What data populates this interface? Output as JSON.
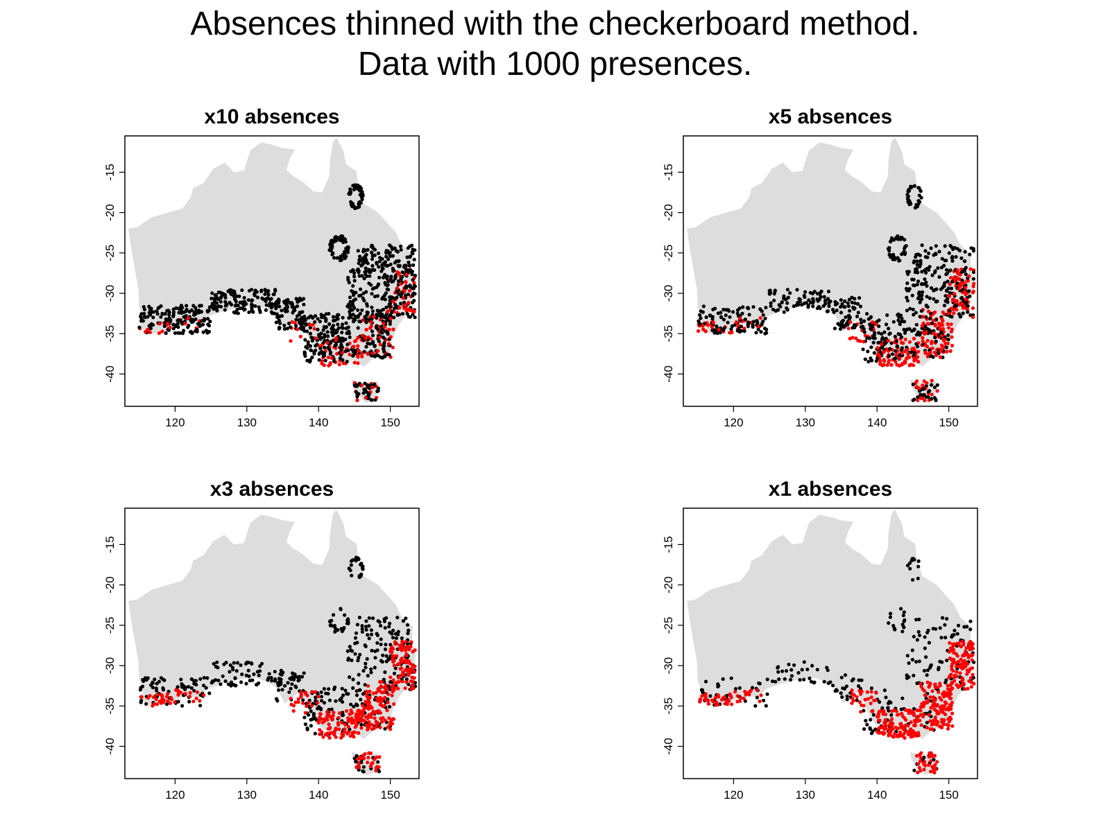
{
  "figure": {
    "title_line1": "Absences thinned with the checkerboard method.",
    "title_line2": "Data with 1000 presences."
  },
  "colors": {
    "land": "#dddddd",
    "absence": "#000000",
    "presence": "#ff0000"
  },
  "chart_data": [
    {
      "type": "scatter",
      "title": "x10 absences",
      "absence_multiplier": 10,
      "xlim": [
        113,
        154
      ],
      "ylim": [
        -44,
        -10.5
      ],
      "xticks": [
        120,
        130,
        140,
        150
      ],
      "yticks": [
        -15,
        -20,
        -25,
        -30,
        -35,
        -40
      ],
      "series": [
        {
          "color": "#000000"
        },
        {
          "color": "#ff0000"
        }
      ]
    },
    {
      "type": "scatter",
      "title": "x5 absences",
      "absence_multiplier": 5,
      "xlim": [
        113,
        154
      ],
      "ylim": [
        -44,
        -10.5
      ],
      "xticks": [
        120,
        130,
        140,
        150
      ],
      "yticks": [
        -15,
        -20,
        -25,
        -30,
        -35,
        -40
      ],
      "series": [
        {
          "color": "#000000"
        },
        {
          "color": "#ff0000"
        }
      ]
    },
    {
      "type": "scatter",
      "title": "x3 absences",
      "absence_multiplier": 3,
      "xlim": [
        113,
        154
      ],
      "ylim": [
        -44,
        -10.5
      ],
      "xticks": [
        120,
        130,
        140,
        150
      ],
      "yticks": [
        -15,
        -20,
        -25,
        -30,
        -35,
        -40
      ],
      "series": [
        {
          "color": "#000000"
        },
        {
          "color": "#ff0000"
        }
      ]
    },
    {
      "type": "scatter",
      "title": "x1 absences",
      "absence_multiplier": 1,
      "xlim": [
        113,
        154
      ],
      "ylim": [
        -44,
        -10.5
      ],
      "xticks": [
        120,
        130,
        140,
        150
      ],
      "yticks": [
        -15,
        -20,
        -25,
        -30,
        -35,
        -40
      ],
      "series": [
        {
          "color": "#000000"
        },
        {
          "color": "#ff0000"
        }
      ]
    }
  ]
}
